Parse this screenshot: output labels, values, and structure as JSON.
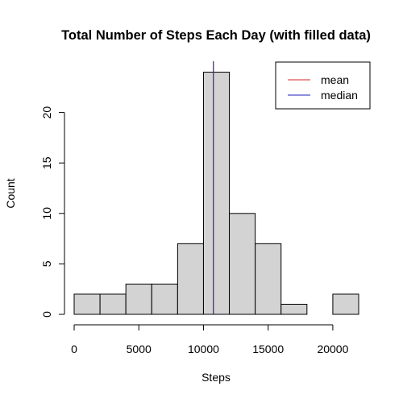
{
  "chart_data": {
    "type": "bar",
    "title": "Total Number of Steps Each Day (with filled data)",
    "xlabel": "Steps",
    "ylabel": "Count",
    "bin_edges": [
      0,
      2000,
      4000,
      6000,
      8000,
      10000,
      12000,
      14000,
      16000,
      18000,
      20000,
      22000
    ],
    "values": [
      2,
      2,
      3,
      3,
      7,
      24,
      10,
      7,
      1,
      0,
      2
    ],
    "xlim": [
      0,
      22000
    ],
    "ylim": [
      0,
      25
    ],
    "x_ticks": [
      0,
      5000,
      10000,
      15000,
      20000
    ],
    "y_ticks": [
      0,
      5,
      10,
      15,
      20
    ],
    "x_tick_labels": [
      "0",
      "5000",
      "10000",
      "15000",
      "20000"
    ],
    "y_tick_labels": [
      "0",
      "5",
      "10",
      "15",
      "20"
    ],
    "reference_lines": [
      {
        "name": "mean",
        "value": 10766.19,
        "color": "#d62728"
      },
      {
        "name": "median",
        "value": 10766.19,
        "color": "#1f1fbf"
      }
    ],
    "bar_fill": "#d3d3d3",
    "bar_stroke": "#000000",
    "legend_position": "top-right",
    "grid": false
  }
}
